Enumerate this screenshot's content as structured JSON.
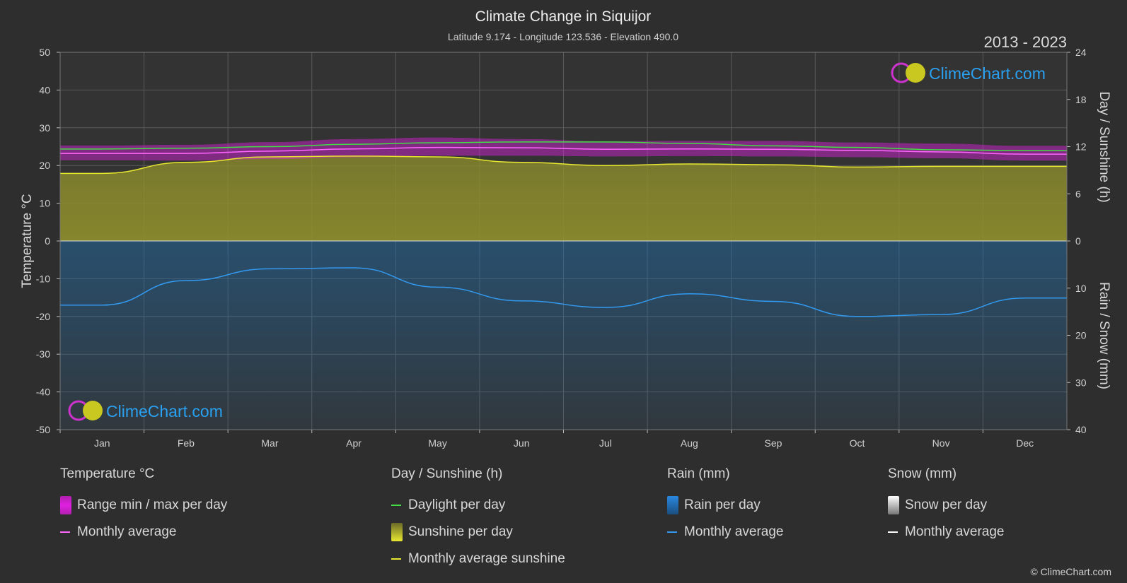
{
  "title": "Climate Change in Siquijor",
  "subtitle": "Latitude 9.174 - Longitude 123.536 - Elevation 490.0",
  "period": "2013 - 2023",
  "logo_text": "ClimeChart.com",
  "copyright": "© ClimeChart.com",
  "colors": {
    "background": "#2e2e2e",
    "temp_range": "#e020e0",
    "temp_avg": "#ff66ff",
    "daylight": "#44dd44",
    "sunshine_fill": "#9a9a30",
    "sunshine_avg": "#e8e830",
    "rain_fill": "#1a6aa8",
    "rain_avg": "#3399ee",
    "snow": "#ffffff",
    "logo": "#2aa0f0"
  },
  "chart_data": {
    "type": "area",
    "categories": [
      "Jan",
      "Feb",
      "Mar",
      "Apr",
      "May",
      "Jun",
      "Jul",
      "Aug",
      "Sep",
      "Oct",
      "Nov",
      "Dec"
    ],
    "y_left": {
      "label": "Temperature °C",
      "ticks": [
        50,
        40,
        30,
        20,
        10,
        0,
        -10,
        -20,
        -30,
        -40,
        -50
      ],
      "lim": [
        -50,
        50
      ]
    },
    "y_right_top": {
      "label": "Day / Sunshine (h)",
      "ticks": [
        24,
        18,
        12,
        6,
        0
      ],
      "lim": [
        0,
        24
      ]
    },
    "y_right_bottom": {
      "label": "Rain / Snow (mm)",
      "ticks": [
        0,
        10,
        20,
        30,
        40
      ],
      "lim": [
        0,
        40
      ]
    },
    "series": [
      {
        "name": "Daylight per day",
        "axis": "sunshine",
        "values": [
          11.7,
          11.8,
          12.0,
          12.3,
          12.5,
          12.6,
          12.6,
          12.4,
          12.1,
          11.9,
          11.6,
          11.5
        ]
      },
      {
        "name": "Monthly average sunshine",
        "axis": "sunshine",
        "values": [
          8.6,
          10.0,
          10.7,
          10.8,
          10.7,
          10.0,
          9.6,
          9.8,
          9.7,
          9.4,
          9.5,
          9.5
        ]
      },
      {
        "name": "Monthly average",
        "group": "Temperature °C",
        "axis": "temperature",
        "values": [
          23.2,
          23.2,
          23.8,
          24.4,
          24.8,
          24.7,
          24.3,
          24.4,
          24.3,
          24.0,
          23.6,
          23.0
        ]
      },
      {
        "name": "Temperature max per day",
        "axis": "temperature",
        "values": [
          25.3,
          25.5,
          26.2,
          27.0,
          27.4,
          27.0,
          26.4,
          26.5,
          26.5,
          26.1,
          25.8,
          25.2
        ]
      },
      {
        "name": "Temperature min per day",
        "axis": "temperature",
        "values": [
          21.4,
          21.3,
          21.7,
          22.2,
          22.6,
          22.6,
          22.4,
          22.5,
          22.4,
          22.2,
          21.9,
          21.3
        ]
      },
      {
        "name": "Monthly average",
        "group": "Rain (mm)",
        "axis": "rain",
        "values": [
          13.6,
          8.4,
          5.9,
          5.7,
          9.8,
          12.7,
          14.1,
          11.2,
          12.8,
          16.0,
          15.6,
          12.1
        ]
      }
    ]
  },
  "legend": {
    "temperature": {
      "title": "Temperature °C",
      "items": [
        "Range min / max per day",
        "Monthly average"
      ]
    },
    "sunshine": {
      "title": "Day / Sunshine (h)",
      "items": [
        "Daylight per day",
        "Sunshine per day",
        "Monthly average sunshine"
      ]
    },
    "rain": {
      "title": "Rain (mm)",
      "items": [
        "Rain per day",
        "Monthly average"
      ]
    },
    "snow": {
      "title": "Snow (mm)",
      "items": [
        "Snow per day",
        "Monthly average"
      ]
    }
  }
}
